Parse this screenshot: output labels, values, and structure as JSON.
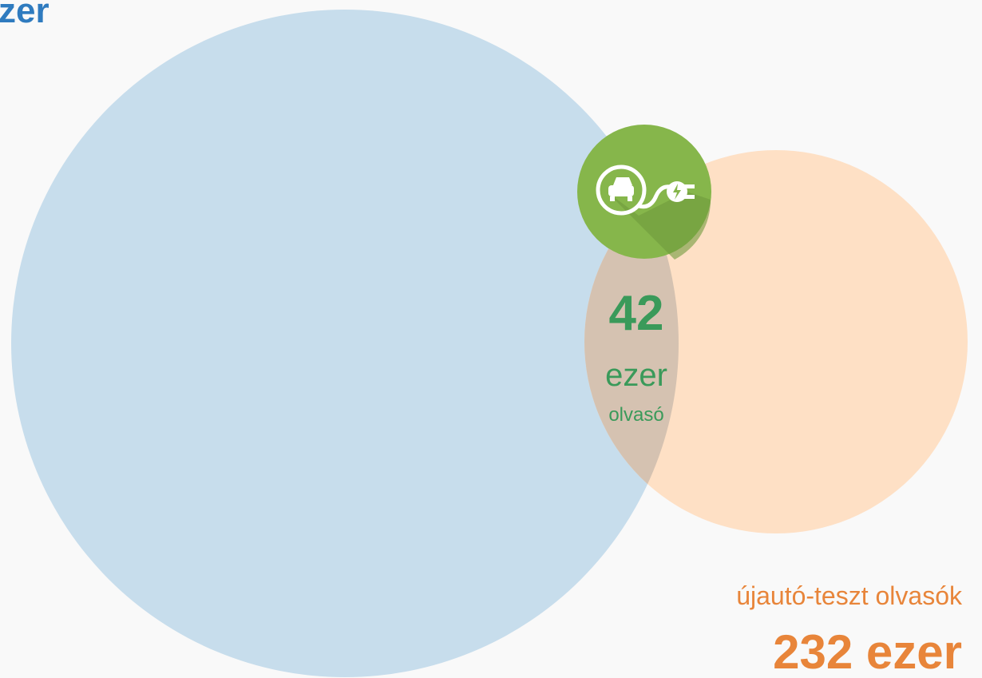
{
  "header": {
    "title": "zer"
  },
  "overlap": {
    "value": "42",
    "unit": "ezer",
    "caption": "olvasó"
  },
  "right_set": {
    "label": "újautó-teszt olvasók",
    "value": "232 ezer"
  }
}
